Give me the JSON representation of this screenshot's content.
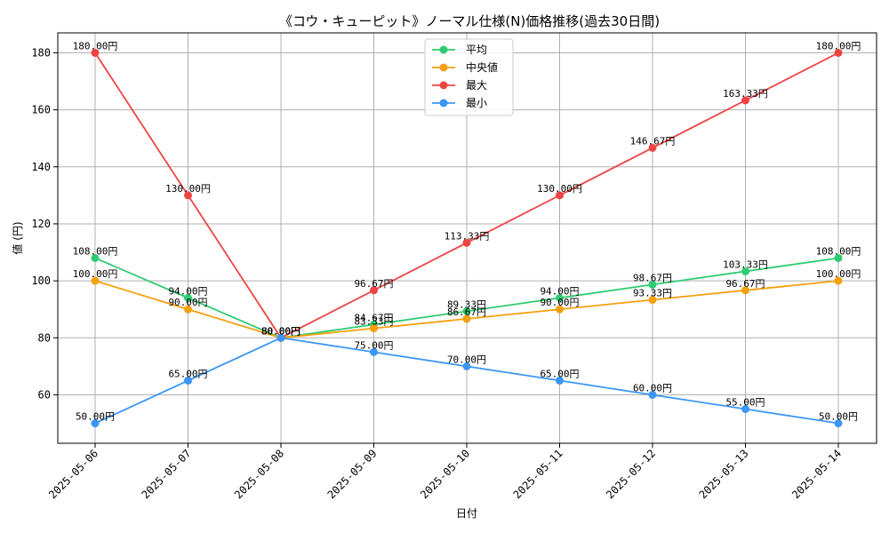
{
  "chart_data": {
    "type": "line",
    "title": "《コウ・キューピット》ノーマル仕様(N)価格推移(過去30日間)",
    "xlabel": "日付",
    "ylabel": "値 (円)",
    "categories": [
      "2025-05-06",
      "2025-05-07",
      "2025-05-08",
      "2025-05-09",
      "2025-05-10",
      "2025-05-11",
      "2025-05-12",
      "2025-05-13",
      "2025-05-14"
    ],
    "yticks": [
      60,
      80,
      100,
      120,
      140,
      160,
      180
    ],
    "ylim": [
      43,
      187
    ],
    "grid": true,
    "legend_position": "top-center",
    "series": [
      {
        "name": "平均",
        "color": "#2ecc71",
        "values": [
          108.0,
          94.0,
          80.0,
          84.67,
          89.33,
          94.0,
          98.67,
          103.33,
          108.0
        ],
        "labels": [
          "108.00円",
          "94.00円",
          "80.00円",
          "84.67円",
          "89.33円",
          "94.00円",
          "98.67円",
          "103.33円",
          "108.00円"
        ]
      },
      {
        "name": "中央値",
        "color": "#f5a00f",
        "values": [
          100.0,
          90.0,
          80.0,
          83.33,
          86.67,
          90.0,
          93.33,
          96.67,
          100.0
        ],
        "labels": [
          "100.00円",
          "90.00円",
          "80.00円",
          "83.33円",
          "86.67円",
          "90.00円",
          "93.33円",
          "96.67円",
          "100.00円"
        ]
      },
      {
        "name": "最大",
        "color": "#ef4444",
        "values": [
          180.0,
          130.0,
          80.0,
          96.67,
          113.33,
          130.0,
          146.67,
          163.33,
          180.0
        ],
        "labels": [
          "180.00円",
          "130.00円",
          "80.00円",
          "96.67円",
          "113.33円",
          "130.00円",
          "146.67円",
          "163.33円",
          "180.00円"
        ]
      },
      {
        "name": "最小",
        "color": "#3b96f5",
        "values": [
          50.0,
          65.0,
          80.0,
          75.0,
          70.0,
          65.0,
          60.0,
          55.0,
          50.0
        ],
        "labels": [
          "50.00円",
          "65.00円",
          "80.00円",
          "75.00円",
          "70.00円",
          "65.00円",
          "60.00円",
          "55.00円",
          "50.00円"
        ]
      }
    ]
  }
}
